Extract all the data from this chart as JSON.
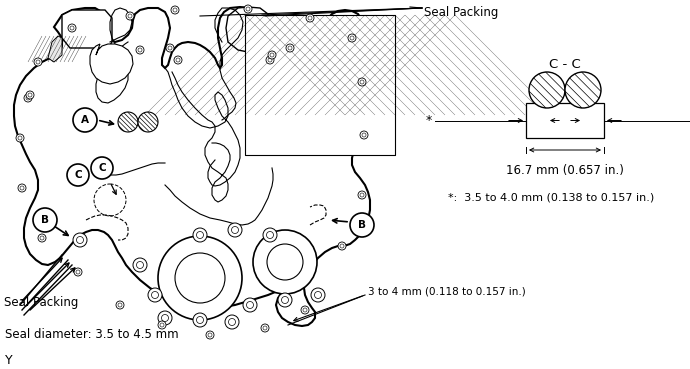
{
  "bg_color": "#ffffff",
  "line_color": "#1a1a1a",
  "text_color": "#1a1a1a",
  "labels": {
    "seal_packing_top": "Seal Packing",
    "seal_packing_bottom": "Seal Packing",
    "seal_diameter": "Seal diameter: 3.5 to 4.5 mm",
    "dimension_bottom": "3 to 4 mm (0.118 to 0.157 in.)",
    "section_label": "C - C",
    "dimension_width": "16.7 mm (0.657 in.)",
    "dimension_star": "*:  3.5 to 4.0 mm (0.138 to 0.157 in.)",
    "y_label": "Y"
  },
  "figsize": [
    6.9,
    3.69
  ],
  "dpi": 100
}
